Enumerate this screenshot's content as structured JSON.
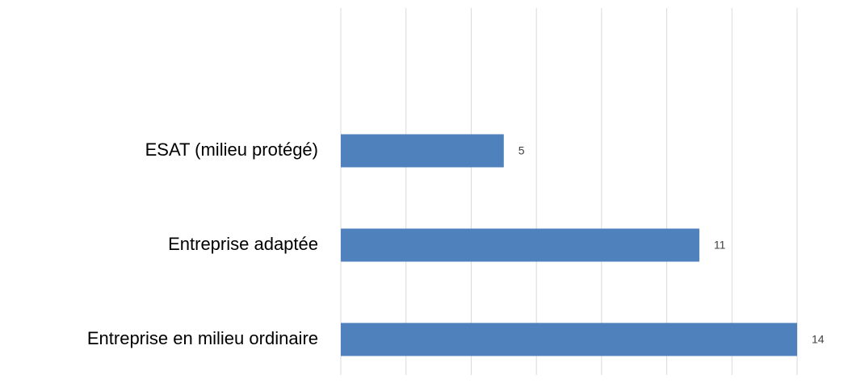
{
  "chart_data": {
    "type": "barh",
    "categories": [
      "ESAT (milieu protégé)",
      "Entreprise adaptée",
      "Entreprise en milieu ordinaire"
    ],
    "values": [
      5,
      11,
      14
    ],
    "color": "#4f81bd",
    "xlim": [
      0,
      14
    ],
    "xticks": [
      0,
      2,
      4,
      6,
      8,
      10,
      12,
      14
    ],
    "grid": true
  }
}
